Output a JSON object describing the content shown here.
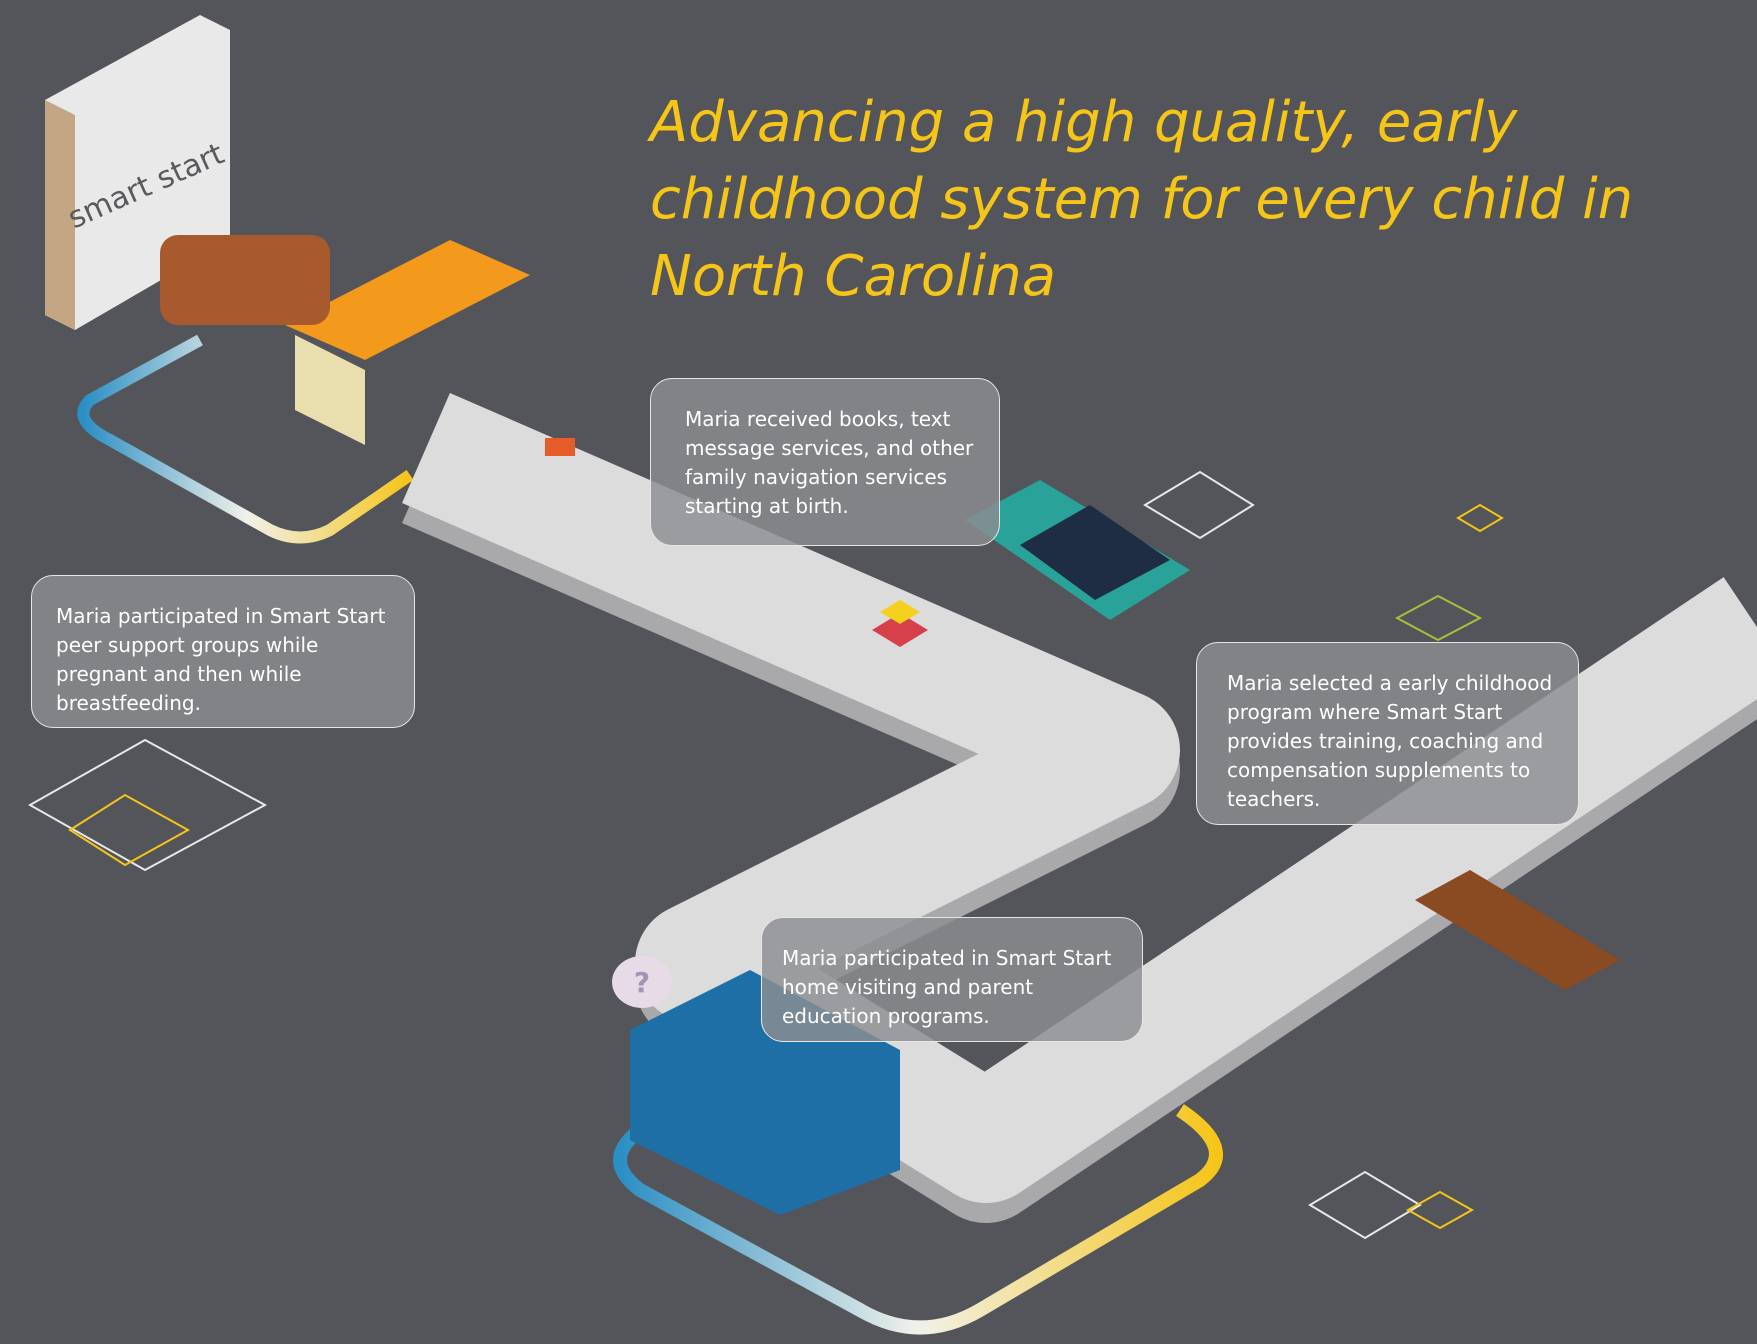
{
  "title": {
    "lines": [
      "Advancing a high quality, early",
      "childhood system for every child in",
      "North Carolina"
    ]
  },
  "logo": "smart start",
  "question_bubble": "?",
  "callouts": [
    {
      "lines": [
        "Maria received books, text",
        "message services, and other",
        "family navigation services",
        "starting at birth."
      ]
    },
    {
      "lines": [
        "Maria participated in Smart Start",
        "peer support groups while",
        "pregnant and then while",
        "breastfeeding."
      ]
    },
    {
      "lines": [
        "Maria selected a early childhood",
        "program where Smart Start",
        "provides training, coaching and",
        "compensation supplements to",
        "teachers."
      ]
    },
    {
      "lines": [
        "Maria participated in Smart Start",
        "home visiting and parent",
        "education programs."
      ]
    }
  ]
}
